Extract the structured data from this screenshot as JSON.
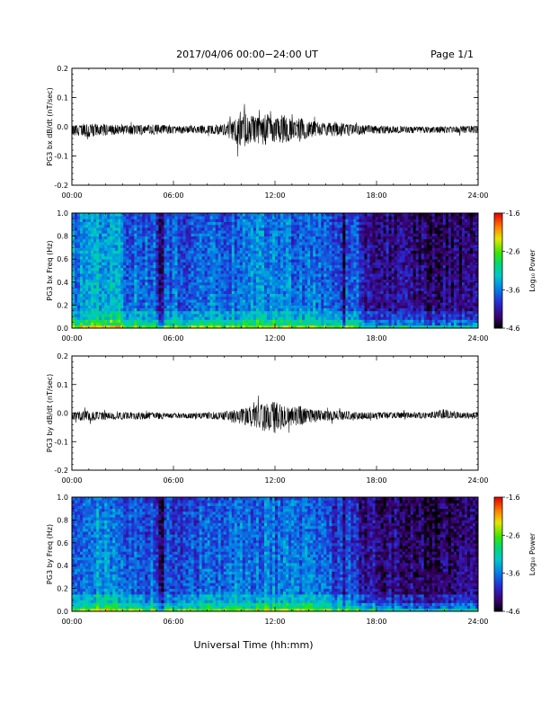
{
  "header": {
    "title": "2017/04/06  00:00−24:00 UT",
    "page": "Page 1/1"
  },
  "footer": {
    "xlabel": "Universal Time (hh:mm)"
  },
  "time_ticks": [
    "00:00",
    "06:00",
    "12:00",
    "18:00",
    "24:00"
  ],
  "colorbar": {
    "label": "Log₁₀ Power",
    "ticks": [
      "-1.6",
      "-2.6",
      "-3.6",
      "-4.6"
    ]
  },
  "chart_data": [
    {
      "type": "line",
      "title": "",
      "xlabel": "",
      "ylabel": "PG3 bx dB/dt (nT/sec)",
      "xlim": [
        0,
        24
      ],
      "ylim": [
        -0.2,
        0.2
      ],
      "x_ticks": [
        "00:00",
        "06:00",
        "12:00",
        "18:00",
        "24:00"
      ],
      "y_ticks": [
        "0.2",
        "0.1",
        "0.0",
        "-0.1",
        "-0.2"
      ],
      "series": [
        {
          "x": [
            0,
            1,
            2,
            3,
            4,
            5,
            6,
            7,
            8,
            9,
            9.5,
            10,
            10.5,
            11,
            11.5,
            12,
            12.5,
            13,
            13.5,
            14,
            15,
            16,
            17,
            18,
            19,
            20,
            21,
            22,
            23,
            24
          ],
          "envelope_max": [
            0.03,
            0.035,
            0.03,
            0.025,
            0.025,
            0.03,
            0.02,
            0.02,
            0.025,
            0.03,
            0.06,
            0.12,
            0.09,
            0.08,
            0.1,
            0.07,
            0.09,
            0.06,
            0.07,
            0.05,
            0.04,
            0.04,
            0.03,
            0.02,
            0.02,
            0.015,
            0.015,
            0.015,
            0.02,
            0.02
          ],
          "envelope_min": [
            -0.04,
            -0.05,
            -0.04,
            -0.035,
            -0.035,
            -0.035,
            -0.03,
            -0.025,
            -0.03,
            -0.04,
            -0.07,
            -0.12,
            -0.1,
            -0.09,
            -0.1,
            -0.08,
            -0.09,
            -0.07,
            -0.08,
            -0.05,
            -0.045,
            -0.045,
            -0.035,
            -0.03,
            -0.025,
            -0.025,
            -0.025,
            -0.025,
            -0.025,
            -0.025
          ]
        }
      ]
    },
    {
      "type": "heatmap",
      "title": "",
      "xlabel": "",
      "ylabel": "PG3 bx Freq (Hz)",
      "xlim": [
        0,
        24
      ],
      "ylim": [
        0,
        1.0
      ],
      "x_ticks": [
        "00:00",
        "06:00",
        "12:00",
        "18:00",
        "24:00"
      ],
      "y_ticks": [
        "1.0",
        "0.8",
        "0.6",
        "0.4",
        "0.2",
        "0.0"
      ],
      "colorscale": "rainbow",
      "zlim": [
        -4.6,
        -1.6
      ],
      "hour_levels": [
        -3.45,
        -3.25,
        -3.3,
        -3.55,
        -3.6,
        -3.7,
        -3.65,
        -3.6,
        -3.55,
        -3.55,
        -3.5,
        -3.45,
        -3.5,
        -3.55,
        -3.6,
        -3.7,
        -3.75,
        -4.05,
        -4.1,
        -4.15,
        -4.2,
        -4.25,
        -4.2,
        -4.1
      ],
      "quiet_bands_hours": [
        [
          5.2,
          5.5
        ],
        [
          16.0,
          16.2
        ]
      ]
    },
    {
      "type": "line",
      "title": "",
      "xlabel": "",
      "ylabel": "PG3 by dB/dt (nT/sec)",
      "xlim": [
        0,
        24
      ],
      "ylim": [
        -0.2,
        0.2
      ],
      "x_ticks": [
        "00:00",
        "06:00",
        "12:00",
        "18:00",
        "24:00"
      ],
      "y_ticks": [
        "0.2",
        "0.1",
        "0.0",
        "-0.1",
        "-0.2"
      ],
      "series": [
        {
          "x": [
            0,
            1,
            2,
            3,
            4,
            5,
            6,
            7,
            8,
            9,
            9.5,
            10,
            10.5,
            11,
            11.5,
            12,
            12.5,
            13,
            13.5,
            14,
            15,
            16,
            17,
            18,
            19,
            20,
            21,
            22,
            23,
            24
          ],
          "envelope_max": [
            0.02,
            0.03,
            0.02,
            0.02,
            0.02,
            0.02,
            0.015,
            0.015,
            0.02,
            0.025,
            0.035,
            0.05,
            0.06,
            0.07,
            0.08,
            0.09,
            0.06,
            0.05,
            0.06,
            0.04,
            0.03,
            0.03,
            0.02,
            0.02,
            0.02,
            0.02,
            0.02,
            0.04,
            0.02,
            0.02
          ],
          "envelope_min": [
            -0.03,
            -0.035,
            -0.03,
            -0.025,
            -0.025,
            -0.025,
            -0.02,
            -0.02,
            -0.025,
            -0.03,
            -0.05,
            -0.06,
            -0.07,
            -0.09,
            -0.11,
            -0.12,
            -0.08,
            -0.07,
            -0.07,
            -0.05,
            -0.035,
            -0.03,
            -0.025,
            -0.025,
            -0.02,
            -0.02,
            -0.02,
            -0.02,
            -0.02,
            -0.02
          ]
        }
      ]
    },
    {
      "type": "heatmap",
      "title": "",
      "xlabel": "",
      "ylabel": "PG3 by Freq (Hz)",
      "xlim": [
        0,
        24
      ],
      "ylim": [
        0,
        1.0
      ],
      "x_ticks": [
        "00:00",
        "06:00",
        "12:00",
        "18:00",
        "24:00"
      ],
      "y_ticks": [
        "1.0",
        "0.8",
        "0.6",
        "0.4",
        "0.2",
        "0.0"
      ],
      "colorscale": "rainbow",
      "zlim": [
        -4.6,
        -1.6
      ],
      "hour_levels": [
        -3.55,
        -3.4,
        -3.45,
        -3.6,
        -3.65,
        -3.75,
        -3.7,
        -3.65,
        -3.6,
        -3.6,
        -3.55,
        -3.5,
        -3.55,
        -3.6,
        -3.65,
        -3.75,
        -3.8,
        -4.1,
        -4.15,
        -4.2,
        -4.25,
        -4.3,
        -4.25,
        -4.15
      ],
      "quiet_bands_hours": [
        [
          5.2,
          5.5
        ],
        [
          16.0,
          16.2
        ]
      ]
    }
  ]
}
